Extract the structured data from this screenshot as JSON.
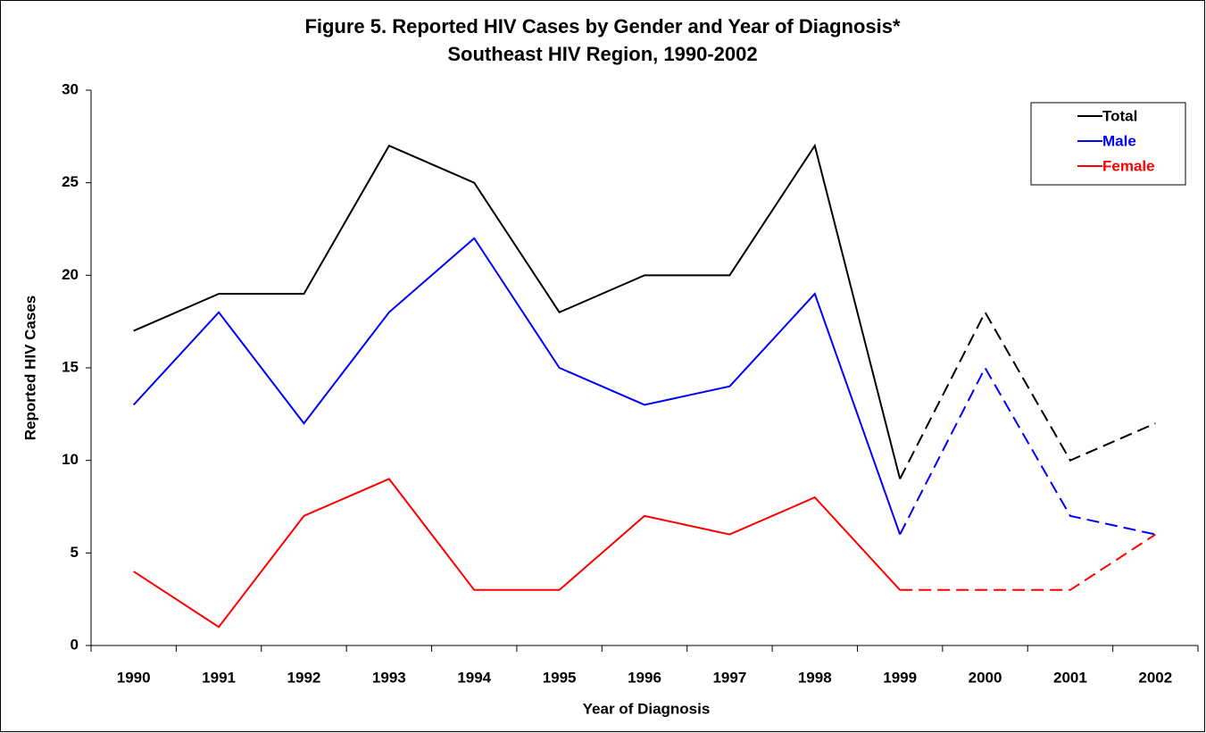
{
  "chart_data": {
    "type": "line",
    "title": "Figure 5.  Reported HIV Cases by Gender and Year of Diagnosis*",
    "subtitle": "Southeast HIV Region, 1990-2002",
    "x_label": "Year of Diagnosis",
    "y_label": "Reported HIV Cases",
    "categories": [
      "1990",
      "1991",
      "1992",
      "1993",
      "1994",
      "1995",
      "1996",
      "1997",
      "1998",
      "1999",
      "2000",
      "2001",
      "2002"
    ],
    "dashed_from": "1999",
    "series": [
      {
        "name": "Total",
        "color": "#000000",
        "values": [
          17,
          19,
          19,
          27,
          25,
          18,
          20,
          20,
          27,
          9,
          18,
          10,
          12
        ]
      },
      {
        "name": "Male",
        "color": "#0000ff",
        "values": [
          13,
          18,
          12,
          18,
          22,
          15,
          13,
          14,
          19,
          6,
          15,
          7,
          6
        ]
      },
      {
        "name": "Female",
        "color": "#ff0000",
        "values": [
          4,
          1,
          7,
          9,
          3,
          3,
          7,
          6,
          8,
          3,
          3,
          3,
          6
        ]
      }
    ],
    "ylim": [
      0,
      30
    ],
    "yticks": [
      0,
      5,
      10,
      15,
      20,
      25,
      30
    ],
    "grid": false,
    "legend": "top-right"
  }
}
